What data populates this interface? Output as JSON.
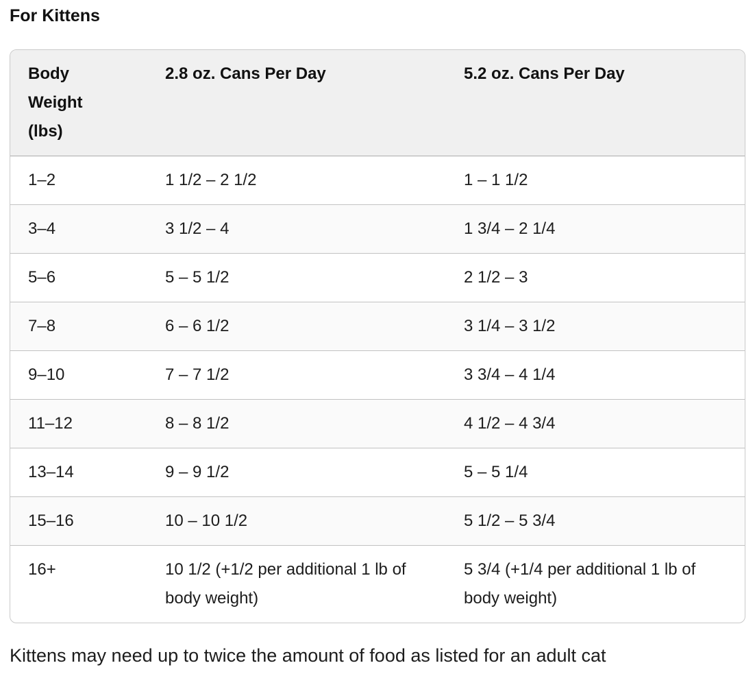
{
  "page": {
    "title": "For Kittens",
    "footnote": "Kittens may need up to twice the amount of food as listed for an adult cat"
  },
  "table": {
    "columns": [
      "Body Weight (lbs)",
      "2.8 oz. Cans Per Day",
      "5.2 oz. Cans Per Day"
    ],
    "rows": [
      [
        "1–2",
        "1 1/2 – 2 1/2",
        "1 – 1 1/2"
      ],
      [
        "3–4",
        "3 1/2 – 4",
        "1 3/4 – 2 1/4"
      ],
      [
        "5–6",
        "5 – 5 1/2",
        "2 1/2 – 3"
      ],
      [
        "7–8",
        "6 – 6 1/2",
        "3 1/4 – 3 1/2"
      ],
      [
        "9–10",
        "7 – 7 1/2",
        "3 3/4 – 4 1/4"
      ],
      [
        "11–12",
        "8 – 8 1/2",
        "4 1/2 – 4 3/4"
      ],
      [
        "13–14",
        "9 – 9 1/2",
        "5 – 5 1/4"
      ],
      [
        "15–16",
        "10 – 10 1/2",
        "5 1/2 – 5 3/4"
      ],
      [
        "16+",
        "10 1/2 (+1/2 per additional 1 lb of body weight)",
        "5 3/4 (+1/4 per additional 1 lb of body weight)"
      ]
    ],
    "colors": {
      "header_bg": "#f0f0f0",
      "stripe_bg": "#fafafa",
      "outer_border": "#c9c9c9",
      "row_border": "#c2c2c2",
      "text": "#1d1d1d"
    }
  }
}
